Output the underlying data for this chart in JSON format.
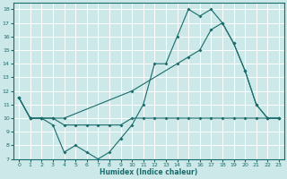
{
  "xlabel": "Humidex (Indice chaleur)",
  "bg_color": "#cce8e8",
  "grid_color": "#aacccc",
  "line_color": "#1a6b6b",
  "xlim": [
    -0.5,
    23.5
  ],
  "ylim": [
    7,
    18.5
  ],
  "yticks": [
    7,
    8,
    9,
    10,
    11,
    12,
    13,
    14,
    15,
    16,
    17,
    18
  ],
  "xticks": [
    0,
    1,
    2,
    3,
    4,
    5,
    6,
    7,
    8,
    9,
    10,
    11,
    12,
    13,
    14,
    15,
    16,
    17,
    18,
    19,
    20,
    21,
    22,
    23
  ],
  "line1_x": [
    0,
    1,
    2,
    3,
    4,
    5,
    6,
    7,
    8,
    9,
    10,
    11,
    12,
    13,
    14,
    15,
    16,
    17,
    18,
    19,
    20,
    21,
    22,
    23
  ],
  "line1_y": [
    11.5,
    10,
    10,
    9.5,
    7.5,
    8,
    7.5,
    7,
    7.5,
    8.5,
    9.5,
    11,
    14,
    14,
    16,
    18,
    17.5,
    18,
    17,
    15.5,
    13.5,
    11,
    10,
    10
  ],
  "line2_x": [
    0,
    1,
    2,
    3,
    4,
    5,
    6,
    7,
    8,
    9,
    10,
    11,
    12,
    13,
    14,
    15,
    16,
    17,
    18,
    19,
    20,
    21,
    22,
    23
  ],
  "line2_y": [
    11.5,
    10,
    10,
    10,
    9.5,
    9.5,
    9.5,
    9.5,
    9.5,
    9.5,
    10,
    10,
    10,
    10,
    10,
    10,
    10,
    10,
    10,
    10,
    10,
    10,
    10,
    10
  ],
  "line3_x": [
    0,
    1,
    2,
    3,
    4,
    10,
    14,
    15,
    16,
    17,
    18,
    19,
    20,
    21,
    22,
    23
  ],
  "line3_y": [
    11.5,
    10,
    10,
    10,
    10,
    12,
    14,
    14.5,
    15,
    16.5,
    17,
    15.5,
    13.5,
    11,
    10,
    10
  ]
}
